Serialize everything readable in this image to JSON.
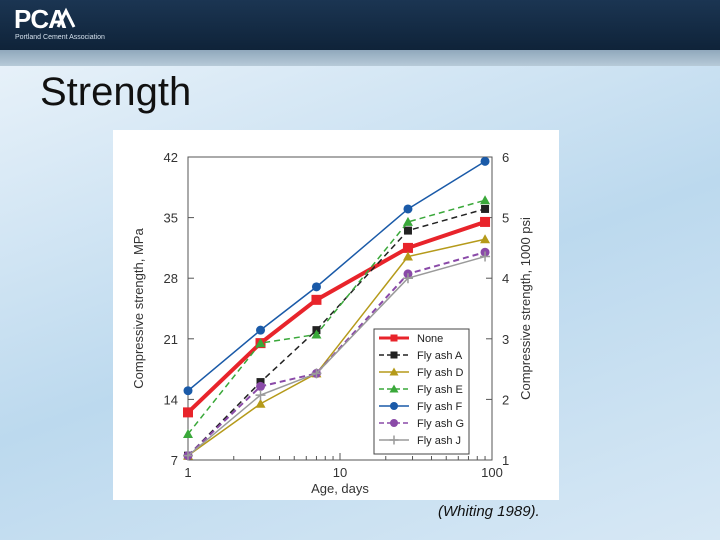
{
  "logo": {
    "text": "PCA",
    "subtext": "Portland Cement Association"
  },
  "slide": {
    "title": "Strength",
    "caption": "(Whiting 1989)."
  },
  "chart_data": {
    "type": "line",
    "x_scale": "log",
    "xlabel": "Age, days",
    "ylabel": "Compressive strength, MPa",
    "ylabel_right": "Compressive strength, 1000 psi",
    "x_ticks": [
      1,
      10,
      100
    ],
    "xlim": [
      1,
      100
    ],
    "y_ticks": [
      7,
      14,
      21,
      28,
      35,
      42
    ],
    "ylim": [
      7,
      42
    ],
    "y2_ticks": [
      1,
      2,
      3,
      4,
      5,
      6
    ],
    "x": [
      1,
      3,
      7,
      28,
      90
    ],
    "legend_position": "bottom-right",
    "series": [
      {
        "name": "None",
        "color": "#e8242b",
        "marker": "square",
        "dash": "solid",
        "width": 4,
        "values": [
          12.5,
          20.5,
          25.5,
          31.5,
          34.5
        ]
      },
      {
        "name": "Fly ash A",
        "color": "#222222",
        "marker": "square",
        "dash": "dashed",
        "width": 1.5,
        "values": [
          7.5,
          16,
          22,
          33.5,
          36
        ]
      },
      {
        "name": "Fly ash D",
        "color": "#b59a1a",
        "marker": "triangle",
        "dash": "solid",
        "width": 1.5,
        "values": [
          7.5,
          13.5,
          17,
          30.5,
          32.5
        ]
      },
      {
        "name": "Fly ash E",
        "color": "#3aa83a",
        "marker": "triangle",
        "dash": "dashed",
        "width": 1.5,
        "values": [
          10,
          20.5,
          21.5,
          34.5,
          37
        ]
      },
      {
        "name": "Fly ash F",
        "color": "#1a5aa8",
        "marker": "circle",
        "dash": "solid",
        "width": 1.5,
        "values": [
          15,
          22,
          27,
          36,
          41.5
        ]
      },
      {
        "name": "Fly ash G",
        "color": "#8a4aa8",
        "marker": "circle",
        "dash": "dashed",
        "width": 2,
        "values": [
          7.5,
          15.5,
          17,
          28.5,
          31
        ]
      },
      {
        "name": "Fly ash J",
        "color": "#9a9a9a",
        "marker": "plus",
        "dash": "solid",
        "width": 1.5,
        "values": [
          7.5,
          14.5,
          17,
          28,
          30.5
        ]
      }
    ]
  }
}
